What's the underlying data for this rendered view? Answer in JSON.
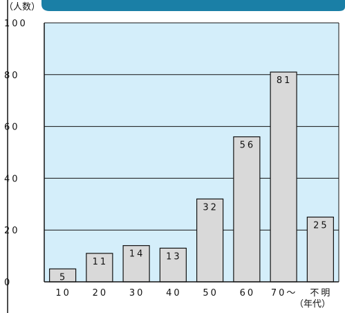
{
  "chart_data": {
    "type": "bar",
    "title": "",
    "xlabel": "",
    "ylabel": "",
    "y_unit_label": "（人数）",
    "categories": [
      "10",
      "20",
      "30",
      "40",
      "50",
      "60",
      "70～",
      "不明"
    ],
    "category_note": "（年代）",
    "values": [
      5,
      11,
      14,
      13,
      32,
      56,
      81,
      25
    ],
    "ylim": [
      0,
      100
    ],
    "yticks": [
      0,
      20,
      40,
      60,
      80,
      100
    ],
    "grid": true,
    "legend": "none",
    "colors": {
      "plot_background": "#d4eefa",
      "bar_fill": "#d9d9d9",
      "bar_stroke": "#111111",
      "grid": "#111111",
      "header_band": "#1a7fa6"
    }
  }
}
